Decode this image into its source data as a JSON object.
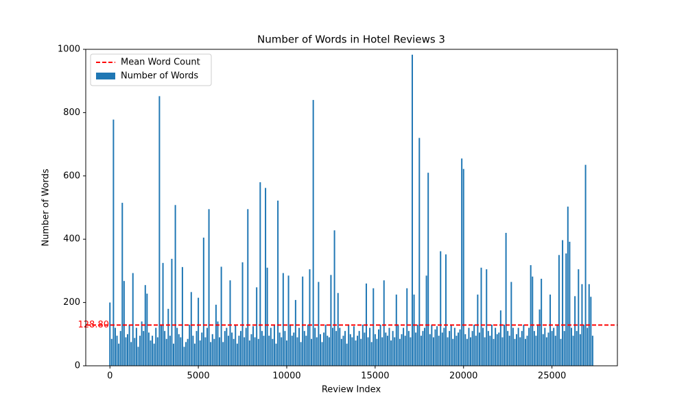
{
  "chart_data": {
    "type": "bar",
    "title": "Number of Words in Hotel Reviews 3",
    "xlabel": "Review Index",
    "ylabel": "Number of Words",
    "xlim": [
      -1367,
      28701
    ],
    "ylim": [
      0,
      1000
    ],
    "xticks": [
      0,
      5000,
      10000,
      15000,
      20000,
      25000
    ],
    "yticks": [
      0,
      200,
      400,
      600,
      800,
      1000
    ],
    "legend": "upper left",
    "mean": 128.8,
    "mean_label": "128.80",
    "mean_name": "Mean Word Count",
    "mean_color": "#ff0000",
    "series": [
      {
        "name": "Number of Words",
        "color": "#1f77b4",
        "x": [
          0,
          100,
          200,
          300,
          400,
          500,
          600,
          700,
          800,
          900,
          1000,
          1100,
          1200,
          1300,
          1400,
          1500,
          1600,
          1700,
          1800,
          1900,
          2000,
          2100,
          2200,
          2300,
          2400,
          2500,
          2600,
          2700,
          2800,
          2900,
          3000,
          3100,
          3200,
          3300,
          3400,
          3500,
          3600,
          3700,
          3800,
          3900,
          4000,
          4100,
          4200,
          4300,
          4400,
          4500,
          4600,
          4700,
          4800,
          4900,
          5000,
          5100,
          5200,
          5300,
          5400,
          5500,
          5600,
          5700,
          5800,
          5900,
          6000,
          6100,
          6200,
          6300,
          6400,
          6500,
          6600,
          6700,
          6800,
          6900,
          7000,
          7100,
          7200,
          7300,
          7400,
          7500,
          7600,
          7700,
          7800,
          7900,
          8000,
          8100,
          8200,
          8300,
          8400,
          8500,
          8600,
          8700,
          8800,
          8900,
          9000,
          9100,
          9200,
          9300,
          9400,
          9500,
          9600,
          9700,
          9800,
          9900,
          10000,
          10100,
          10200,
          10300,
          10400,
          10500,
          10600,
          10700,
          10800,
          10900,
          11000,
          11100,
          11200,
          11300,
          11400,
          11500,
          11600,
          11700,
          11800,
          11900,
          12000,
          12100,
          12200,
          12300,
          12400,
          12500,
          12600,
          12700,
          12800,
          12900,
          13000,
          13100,
          13200,
          13300,
          13400,
          13500,
          13600,
          13700,
          13800,
          13900,
          14000,
          14100,
          14200,
          14300,
          14400,
          14500,
          14600,
          14700,
          14800,
          14900,
          15000,
          15100,
          15200,
          15300,
          15400,
          15500,
          15600,
          15700,
          15800,
          15900,
          16000,
          16100,
          16200,
          16300,
          16400,
          16500,
          16600,
          16700,
          16800,
          16900,
          17000,
          17100,
          17200,
          17300,
          17400,
          17500,
          17600,
          17700,
          17800,
          17900,
          18000,
          18100,
          18200,
          18300,
          18400,
          18500,
          18600,
          18700,
          18800,
          18900,
          19000,
          19100,
          19200,
          19300,
          19400,
          19500,
          19600,
          19700,
          19800,
          19900,
          20000,
          20100,
          20200,
          20300,
          20400,
          20500,
          20600,
          20700,
          20800,
          20900,
          21000,
          21100,
          21200,
          21300,
          21400,
          21500,
          21600,
          21700,
          21800,
          21900,
          22000,
          22100,
          22200,
          22300,
          22400,
          22500,
          22600,
          22700,
          22800,
          22900,
          23000,
          23100,
          23200,
          23300,
          23400,
          23500,
          23600,
          23700,
          23800,
          23900,
          24000,
          24100,
          24200,
          24300,
          24400,
          24500,
          24600,
          24700,
          24800,
          24900,
          25000,
          25100,
          25200,
          25300,
          25400,
          25500,
          25600,
          25700,
          25800,
          25900,
          26000,
          26100,
          26200,
          26300,
          26400,
          26500,
          26600,
          26700,
          26800,
          26900,
          27000,
          27100,
          27200,
          27300
        ],
        "values": [
          200,
          85,
          778,
          120,
          95,
          70,
          110,
          515,
          268,
          90,
          100,
          130,
          75,
          293,
          88,
          120,
          60,
          95,
          140,
          110,
          255,
          228,
          105,
          80,
          95,
          70,
          120,
          90,
          852,
          130,
          325,
          110,
          85,
          180,
          95,
          338,
          70,
          508,
          120,
          100,
          90,
          312,
          60,
          75,
          85,
          130,
          233,
          95,
          70,
          110,
          215,
          80,
          105,
          405,
          90,
          120,
          495,
          75,
          100,
          85,
          193,
          140,
          90,
          313,
          75,
          110,
          120,
          95,
          270,
          105,
          85,
          130,
          70,
          95,
          110,
          327,
          90,
          120,
          495,
          80,
          100,
          125,
          90,
          248,
          85,
          580,
          110,
          95,
          562,
          310,
          95,
          120,
          85,
          130,
          70,
          522,
          105,
          90,
          293,
          110,
          80,
          285,
          130,
          95,
          105,
          208,
          90,
          120,
          75,
          282,
          110,
          95,
          130,
          305,
          85,
          840,
          120,
          90,
          265,
          100,
          75,
          105,
          130,
          95,
          90,
          287,
          120,
          428,
          110,
          230,
          120,
          85,
          95,
          110,
          70,
          130,
          100,
          90,
          125,
          80,
          95,
          110,
          85,
          130,
          105,
          260,
          90,
          120,
          75,
          245,
          100,
          85,
          115,
          130,
          90,
          270,
          105,
          95,
          120,
          80,
          110,
          90,
          225,
          130,
          85,
          100,
          120,
          95,
          245,
          110,
          90,
          983,
          225,
          105,
          130,
          720,
          95,
          110,
          120,
          285,
          610,
          100,
          130,
          90,
          115,
          125,
          95,
          362,
          105,
          120,
          352,
          90,
          110,
          130,
          85,
          120,
          95,
          105,
          115,
          655,
          622,
          100,
          85,
          120,
          90,
          110,
          130,
          95,
          225,
          105,
          310,
          120,
          90,
          305,
          110,
          95,
          130,
          85,
          120,
          100,
          105,
          175,
          90,
          130,
          420,
          110,
          95,
          265,
          120,
          85,
          100,
          120,
          90,
          110,
          130,
          85,
          95,
          120,
          318,
          282,
          110,
          95,
          130,
          178,
          275,
          100,
          120,
          90,
          105,
          225,
          110,
          120,
          95,
          130,
          350,
          85,
          397,
          110,
          355,
          503,
          392,
          120,
          95,
          220,
          110,
          305,
          100,
          258,
          130,
          635,
          120,
          258,
          218,
          95
        ]
      }
    ]
  }
}
